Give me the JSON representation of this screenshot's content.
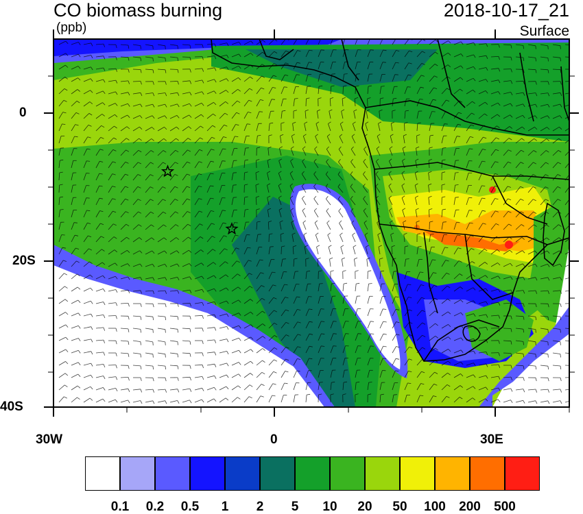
{
  "header": {
    "title": "CO biomass burning",
    "units": "(ppb)",
    "timestamp": "2018-10-17_21",
    "level": "Surface"
  },
  "axes": {
    "y_labels": [
      "0",
      "20S",
      "40S"
    ],
    "x_labels": [
      "30W",
      "0",
      "30E"
    ]
  },
  "colorbar": {
    "colors": [
      "#ffffff",
      "#a6a6f8",
      "#5a5aff",
      "#1414ff",
      "#0a3cc8",
      "#0a7060",
      "#14a02a",
      "#3ab420",
      "#9ad60c",
      "#f0f008",
      "#ffb400",
      "#ff6e00",
      "#ff1e14"
    ],
    "labels": [
      "0.1",
      "0.2",
      "0.5",
      "1",
      "2",
      "5",
      "10",
      "20",
      "50",
      "100",
      "200",
      "500"
    ]
  },
  "markers": [
    {
      "name": "station-star-1",
      "lon": -14.5,
      "lat": -8.0
    },
    {
      "name": "station-star-2",
      "lon": -5.8,
      "lat": -15.8
    }
  ]
}
